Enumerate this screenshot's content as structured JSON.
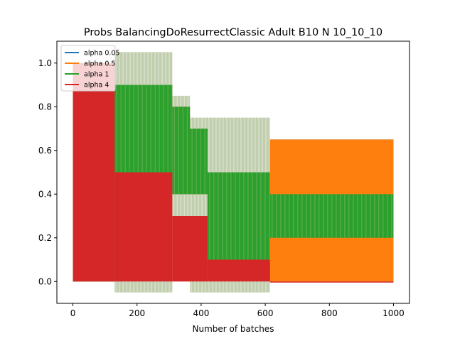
{
  "chart_data": {
    "type": "line",
    "title": "Probs BalancingDoResurrectClassic Adult B10 N 10_10_10",
    "xlabel": "Number of batches",
    "ylabel": "",
    "xlim": [
      -50,
      1050
    ],
    "ylim": [
      -0.1,
      1.1
    ],
    "xticks": [
      0,
      200,
      400,
      600,
      800,
      1000
    ],
    "yticks": [
      0.0,
      0.2,
      0.4,
      0.6,
      0.8,
      1.0
    ],
    "x_tick_labels": [
      "0",
      "200",
      "400",
      "600",
      "800",
      "1000"
    ],
    "y_tick_labels": [
      "0.0",
      "0.2",
      "0.4",
      "0.6",
      "0.8",
      "1.0"
    ],
    "grid": false,
    "legend_position": "upper-left",
    "series": [
      {
        "name": "alpha 0.05",
        "color": "#1f77b4",
        "segments": [
          {
            "x_start": 0,
            "x_end": 130,
            "band_low": 0.0,
            "band_high": 1.0
          },
          {
            "x_start": 130,
            "x_end": 310,
            "band_low": 0.5,
            "band_high": 0.9
          },
          {
            "x_start": 310,
            "x_end": 365,
            "band_low": 0.4,
            "band_high": 0.8
          },
          {
            "x_start": 365,
            "x_end": 420,
            "band_low": 0.4,
            "band_high": 0.7
          },
          {
            "x_start": 420,
            "x_end": 615,
            "band_low": 0.1,
            "band_high": 0.5
          },
          {
            "x_start": 615,
            "x_end": 1000,
            "band_low": 0.0,
            "band_high": 0.65
          }
        ]
      },
      {
        "name": "alpha 0.5",
        "color": "#ff7f0e",
        "segments": [
          {
            "x_start": 0,
            "x_end": 130,
            "band_low": 0.0,
            "band_high": 1.0
          },
          {
            "x_start": 130,
            "x_end": 310,
            "band_low": 0.5,
            "band_high": 0.9
          },
          {
            "x_start": 310,
            "x_end": 365,
            "band_low": 0.4,
            "band_high": 0.8
          },
          {
            "x_start": 365,
            "x_end": 420,
            "band_low": 0.4,
            "band_high": 0.7
          },
          {
            "x_start": 420,
            "x_end": 615,
            "band_low": 0.1,
            "band_high": 0.5
          },
          {
            "x_start": 615,
            "x_end": 1000,
            "band_low": 0.0,
            "band_high": 0.65
          }
        ]
      },
      {
        "name": "alpha 1",
        "color": "#2ca02c",
        "segments": [
          {
            "x_start": 0,
            "x_end": 130,
            "band_low": 0.0,
            "band_high": 1.0
          },
          {
            "x_start": 130,
            "x_end": 310,
            "band_low": 0.5,
            "band_high": 0.9
          },
          {
            "x_start": 310,
            "x_end": 365,
            "band_low": 0.4,
            "band_high": 0.8
          },
          {
            "x_start": 365,
            "x_end": 420,
            "band_low": 0.4,
            "band_high": 0.7
          },
          {
            "x_start": 420,
            "x_end": 615,
            "band_low": 0.1,
            "band_high": 0.5
          },
          {
            "x_start": 615,
            "x_end": 1000,
            "band_low": 0.2,
            "band_high": 0.4
          }
        ]
      },
      {
        "name": "alpha 4",
        "color": "#d62728",
        "segments": [
          {
            "x_start": 0,
            "x_end": 130,
            "band_low": 0.0,
            "band_high": 1.0
          },
          {
            "x_start": 130,
            "x_end": 310,
            "band_low": 0.0,
            "band_high": 0.5
          },
          {
            "x_start": 310,
            "x_end": 420,
            "band_low": 0.0,
            "band_high": 0.3
          },
          {
            "x_start": 420,
            "x_end": 615,
            "band_low": 0.0,
            "band_high": 0.1
          },
          {
            "x_start": 615,
            "x_end": 1000,
            "band_low": 0.0,
            "band_high": 0.0
          }
        ]
      }
    ],
    "shaded_bands": [
      {
        "x_start": 130,
        "x_end": 310,
        "low": -0.05,
        "high": 1.05
      },
      {
        "x_start": 310,
        "x_end": 365,
        "low": 0.0,
        "high": 0.85
      },
      {
        "x_start": 365,
        "x_end": 420,
        "low": -0.05,
        "high": 0.75
      },
      {
        "x_start": 420,
        "x_end": 615,
        "low": -0.05,
        "high": 0.75
      },
      {
        "x_start": 615,
        "x_end": 1000,
        "low": 0.0,
        "high": 0.65
      }
    ],
    "shaded_color": "#8fa86e"
  }
}
